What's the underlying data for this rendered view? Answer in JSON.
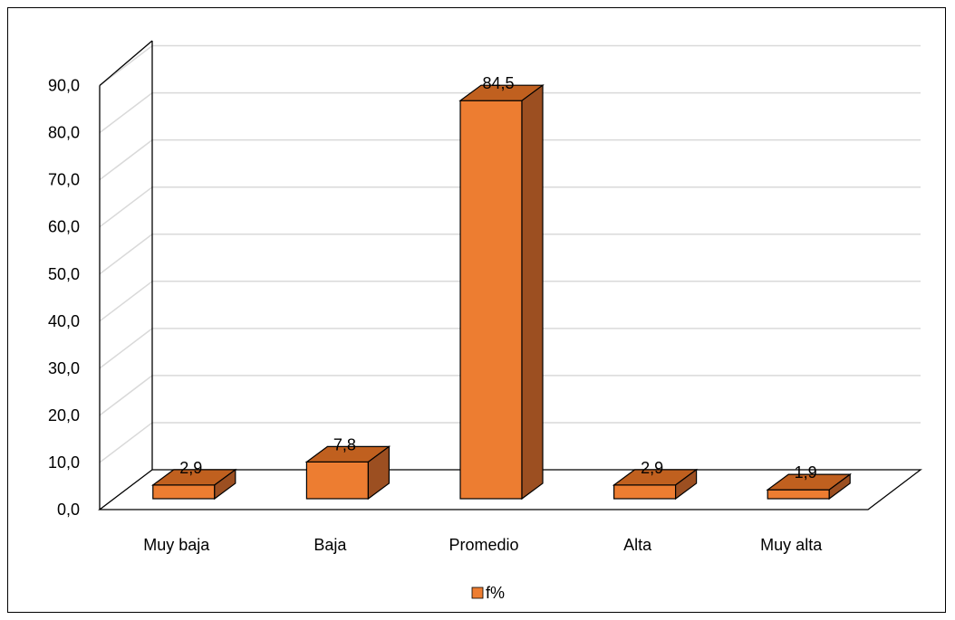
{
  "chart_data": {
    "type": "bar",
    "categories": [
      "Muy baja",
      "Baja",
      "Promedio",
      "Alta",
      "Muy alta"
    ],
    "series": [
      {
        "name": "f%",
        "values": [
          2.9,
          7.8,
          84.5,
          2.9,
          1.9
        ]
      }
    ],
    "value_labels": [
      "2,9",
      "7,8",
      "84,5",
      "2,9",
      "1,9"
    ],
    "y_ticks": [
      "0,0",
      "10,0",
      "20,0",
      "30,0",
      "40,0",
      "50,0",
      "60,0",
      "70,0",
      "80,0",
      "90,0"
    ],
    "ylim": [
      0,
      90
    ],
    "title": "",
    "xlabel": "",
    "ylabel": "",
    "grid": true,
    "legend_position": "bottom",
    "three_d": true,
    "colors": {
      "front": "#ED7D31",
      "top": "#C0601F",
      "side": "#9C4F21",
      "outline": "#000000",
      "grid": "#D9D9D9"
    }
  }
}
